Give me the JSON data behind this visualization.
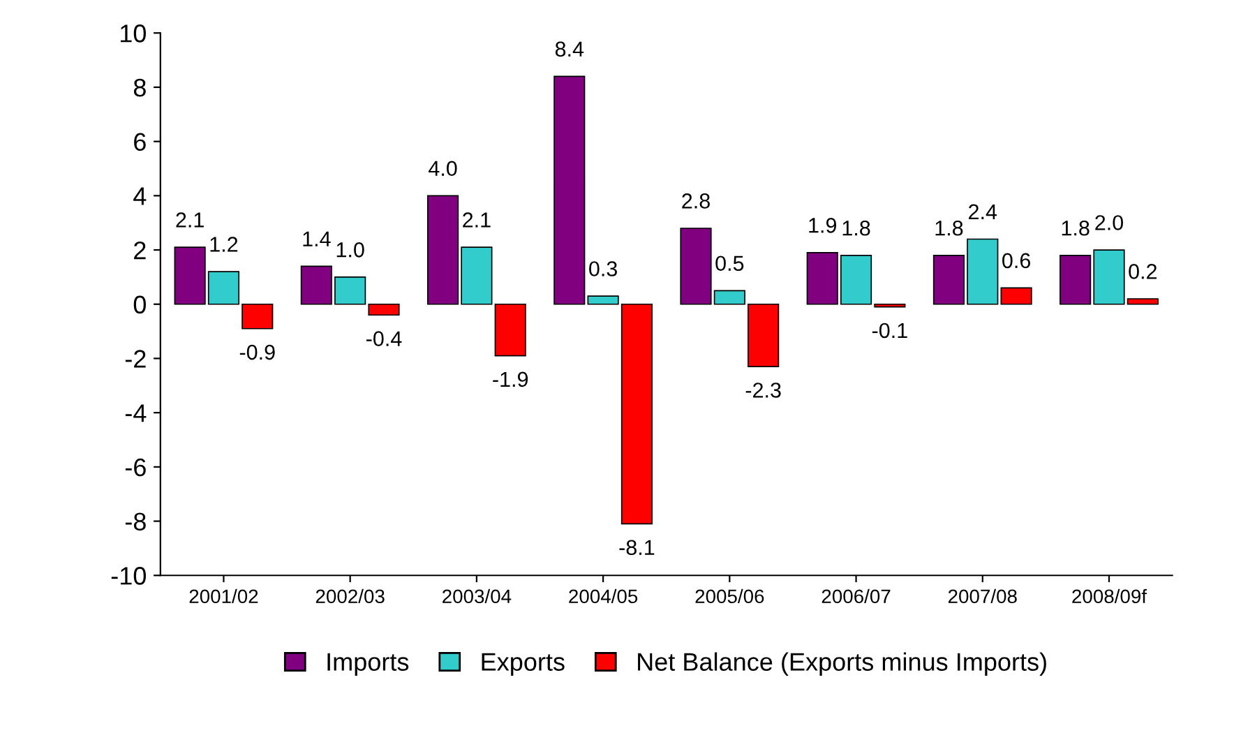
{
  "chart_data": {
    "type": "bar",
    "categories": [
      "2001/02",
      "2002/03",
      "2003/04",
      "2004/05",
      "2005/06",
      "2006/07",
      "2007/08",
      "2008/09f"
    ],
    "series": [
      {
        "name": "Imports",
        "color": "#800080",
        "values": [
          2.1,
          1.4,
          4.0,
          8.4,
          2.8,
          1.9,
          1.8,
          1.8
        ],
        "value_labels": [
          "2.1",
          "1.4",
          "4.0",
          "8.4",
          "2.8",
          "1.9",
          "1.8",
          "1.8"
        ]
      },
      {
        "name": "Exports",
        "color": "#33cccc",
        "values": [
          1.2,
          1.0,
          2.1,
          0.3,
          0.5,
          1.8,
          2.4,
          2.0
        ],
        "value_labels": [
          "1.2",
          "1.0",
          "2.1",
          "0.3",
          "0.5",
          "1.8",
          "2.4",
          "2.0"
        ]
      },
      {
        "name": "Net Balance (Exports minus Imports)",
        "color": "#ff0000",
        "values": [
          -0.9,
          -0.4,
          -1.9,
          -8.1,
          -2.3,
          -0.1,
          0.6,
          0.2
        ],
        "value_labels": [
          "-0.9",
          "-0.4",
          "-1.9",
          "-8.1",
          "-2.3",
          "-0.1",
          "0.6",
          "0.2"
        ]
      }
    ],
    "ylim": [
      -10,
      10
    ],
    "yticks": [
      -10,
      -8,
      -6,
      -4,
      -2,
      0,
      2,
      4,
      6,
      8,
      10
    ],
    "grid": false,
    "legend": "bottom"
  }
}
